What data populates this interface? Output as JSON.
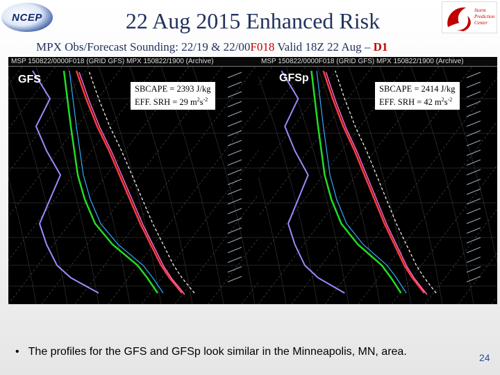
{
  "logos": {
    "left_text": "NCEP",
    "right_text": "Storm Prediction Center"
  },
  "slide": {
    "title": "22 Aug 2015 Enhanced Risk",
    "subtitle_part1": "MPX Obs/Forecast Sounding: 22/19 & 22/00",
    "subtitle_f018": "F018",
    "subtitle_part2": " Valid 18Z 22 Aug – ",
    "subtitle_d1": "D1",
    "bullet": "The profiles for the GFS and GFSp look similar in the Minneapolis, MN, area.",
    "page_number": "24"
  },
  "panels": [
    {
      "model": "GFS",
      "header_text": "MSP  150822/0000F018 (GRID GFS)          MPX  150822/1900  (Archive)",
      "cape_label": "SBCAPE = 2393 J/kg",
      "srh_label": "EFF. SRH  = 29 m",
      "srh_unit_sup": "2",
      "srh_unit_s": "s",
      "srh_unit_s_sup": "-2"
    },
    {
      "model": "GFSp",
      "header_text": "MSP  150822/0000F018 (GRID GFS)          MPX  150822/1900  (Archive)",
      "cape_label": "SBCAPE = 2414 J/kg",
      "srh_label": "EFF. SRH  = 42 m",
      "srh_unit_sup": "2",
      "srh_unit_s": "s",
      "srh_unit_s_sup": "-2"
    }
  ],
  "colors": {
    "title": "#22325e",
    "accent_red": "#c00000",
    "observed_temp": "#ff3b3b",
    "forecast_temp": "#ff66cc",
    "dewpoint": "#22dd22",
    "wetbulb": "#33aaff",
    "theta_e": "#9a8cff",
    "parcel": "#ffffff"
  }
}
